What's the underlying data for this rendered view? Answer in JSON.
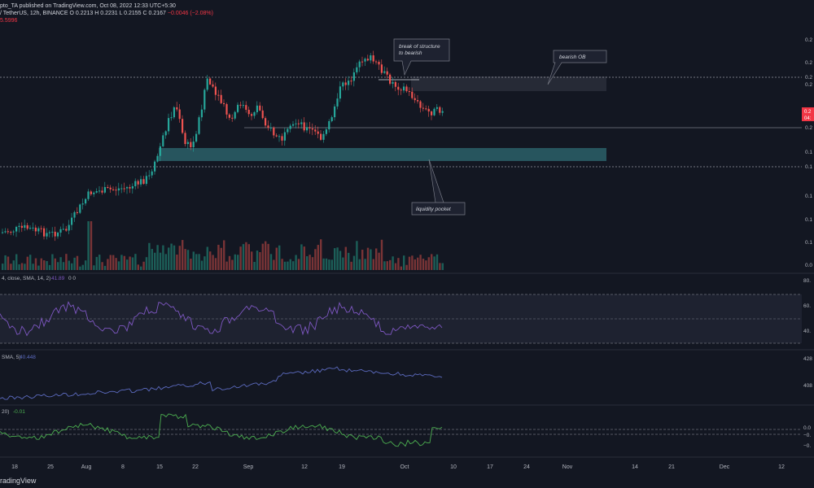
{
  "header": {
    "line1": "pto_TA published on TradingView.com, Oct 08, 2022 12:33 UTC+5:30",
    "line2_pair": "/ TetherUS, 12h, BINANCE",
    "line2_ohlc": "O 0.2213  H 0.2231  L 0.2155  C 0.2167",
    "line2_change": "−0.0046 (−2.08%)",
    "line3": "5.5996"
  },
  "annotations": {
    "break_of_structure": [
      "break of structure",
      "to bearish"
    ],
    "bearish_ob": "bearish OB",
    "liquidity_pocket": "liquidity pocket"
  },
  "price_axis": [
    "0.2",
    "0.2",
    "0.2",
    "0.2",
    "0.2",
    "0.2",
    "0.1",
    "0.1",
    "0.1",
    "0.1",
    "0.1",
    "0.0"
  ],
  "price_badge": [
    "0.2",
    "04:"
  ],
  "rsi": {
    "label": "4, close, SMA, 14, 2)",
    "value": "41.89",
    "extra": "0  0",
    "axis": [
      "80.",
      "60.",
      "40."
    ]
  },
  "obv": {
    "label": "SMA, 5)",
    "value": "40.448",
    "axis": [
      "428",
      "408"
    ]
  },
  "osc": {
    "label": "20)",
    "value": "-0.01",
    "axis": [
      "0.0",
      "−0.",
      "−0."
    ]
  },
  "time_axis": [
    "18",
    "25",
    "Aug",
    "8",
    "15",
    "22",
    "Sep",
    "12",
    "19",
    "Oct",
    "10",
    "17",
    "24",
    "Nov",
    "14",
    "21",
    "Dec",
    "12"
  ],
  "footer": {
    "brand": "radingView"
  },
  "chart_data": {
    "type": "candlestick",
    "instrument": "TetherUS, 12h, BINANCE",
    "price_range_visible": [
      0.0,
      0.2
    ],
    "candles_approx_close": [
      0.12,
      0.125,
      0.13,
      0.125,
      0.13,
      0.135,
      0.15,
      0.16,
      0.17,
      0.18,
      0.2,
      0.24,
      0.24,
      0.22,
      0.23,
      0.21,
      0.21,
      0.22,
      0.24,
      0.25,
      0.24,
      0.2167
    ],
    "indicators": [
      "volume",
      "RSI",
      "OBV",
      "oscillator"
    ],
    "colors": {
      "up": "#26a69a",
      "down": "#ef5350",
      "rsi": "#7e57c2",
      "obv": "#5c6bc0",
      "osc": "#4caf50",
      "zone": "#3d7f86"
    }
  }
}
